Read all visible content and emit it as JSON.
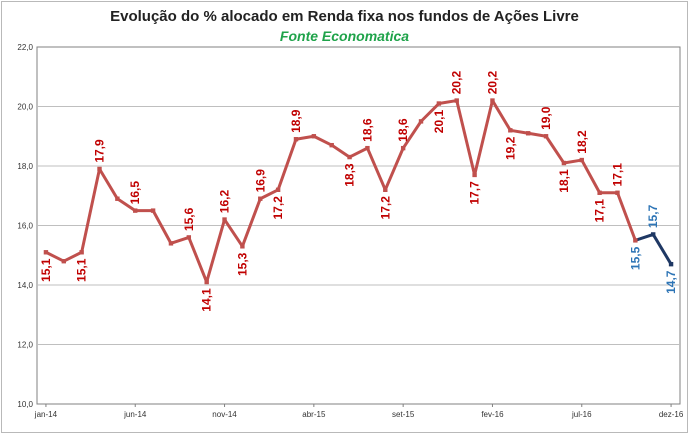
{
  "chart_data": {
    "type": "line",
    "title": "Evolução do %  alocado em Renda fixa nos fundos de Ações Livre",
    "subtitle": "Fonte Economatica",
    "xlabel": "",
    "ylabel": "",
    "ylim": [
      10.0,
      22.0
    ],
    "yticks": [
      "10,0",
      "12,0",
      "14,0",
      "16,0",
      "18,0",
      "20,0",
      "22,0"
    ],
    "xtick_labels": [
      "jan-14",
      "jun-14",
      "nov-14",
      "abr-15",
      "set-15",
      "fev-16",
      "jul-16",
      "dez-16"
    ],
    "grid": true,
    "legend": "none",
    "colors": {
      "main": "#c0504d",
      "recent": "#1f3864",
      "label_main": "#c00000",
      "label_recent": "#2e75b6",
      "plot_bg": "#ffffff",
      "grid": "#bfbfbf",
      "subtitle": "#1fa34a"
    },
    "x": [
      "jan-14",
      "fev-14",
      "mar-14",
      "abr-14",
      "mai-14",
      "jun-14",
      "jul-14",
      "ago-14",
      "set-14",
      "out-14",
      "nov-14",
      "dez-14",
      "jan-15",
      "fev-15",
      "mar-15",
      "abr-15",
      "mai-15",
      "jun-15",
      "jul-15",
      "ago-15",
      "set-15",
      "out-15",
      "nov-15",
      "dez-15",
      "jan-16",
      "fev-16",
      "mar-16",
      "abr-16",
      "mai-16",
      "jun-16",
      "jul-16",
      "ago-16",
      "set-16",
      "out-16",
      "nov-16",
      "dez-16"
    ],
    "series": [
      {
        "values": [
          15.1,
          14.8,
          15.1,
          17.9,
          16.9,
          16.5,
          16.5,
          15.4,
          15.6,
          14.1,
          16.2,
          15.3,
          16.9,
          17.2,
          18.9,
          19.0,
          18.7,
          18.3,
          18.6,
          17.2,
          18.6,
          19.5,
          20.1,
          20.2,
          17.7,
          20.2,
          19.2,
          19.1,
          19.0,
          18.1,
          18.2,
          17.1,
          17.1,
          15.5,
          15.7,
          14.7
        ]
      }
    ],
    "recent_segment_start_index": 33,
    "data_labels": [
      {
        "i": 0,
        "text": "15,1",
        "pos": "below"
      },
      {
        "i": 2,
        "text": "15,1",
        "pos": "below"
      },
      {
        "i": 3,
        "text": "17,9",
        "pos": "above"
      },
      {
        "i": 5,
        "text": "16,5",
        "pos": "above"
      },
      {
        "i": 8,
        "text": "15,6",
        "pos": "above"
      },
      {
        "i": 9,
        "text": "14,1",
        "pos": "below"
      },
      {
        "i": 10,
        "text": "16,2",
        "pos": "above"
      },
      {
        "i": 11,
        "text": "15,3",
        "pos": "below"
      },
      {
        "i": 12,
        "text": "16,9",
        "pos": "above"
      },
      {
        "i": 13,
        "text": "17,2",
        "pos": "below"
      },
      {
        "i": 14,
        "text": "18,9",
        "pos": "above"
      },
      {
        "i": 17,
        "text": "18,3",
        "pos": "below"
      },
      {
        "i": 18,
        "text": "18,6",
        "pos": "above"
      },
      {
        "i": 19,
        "text": "17,2",
        "pos": "below"
      },
      {
        "i": 20,
        "text": "18,6",
        "pos": "above"
      },
      {
        "i": 22,
        "text": "20,1",
        "pos": "below"
      },
      {
        "i": 23,
        "text": "20,2",
        "pos": "above"
      },
      {
        "i": 24,
        "text": "17,7",
        "pos": "below"
      },
      {
        "i": 25,
        "text": "20,2",
        "pos": "above"
      },
      {
        "i": 26,
        "text": "19,2",
        "pos": "below"
      },
      {
        "i": 28,
        "text": "19,0",
        "pos": "above"
      },
      {
        "i": 29,
        "text": "18,1",
        "pos": "below"
      },
      {
        "i": 30,
        "text": "18,2",
        "pos": "above"
      },
      {
        "i": 31,
        "text": "17,1",
        "pos": "below"
      },
      {
        "i": 32,
        "text": "17,1",
        "pos": "above"
      },
      {
        "i": 33,
        "text": "15,5",
        "pos": "below"
      },
      {
        "i": 34,
        "text": "15,7",
        "pos": "above"
      },
      {
        "i": 35,
        "text": "14,7",
        "pos": "below"
      }
    ]
  }
}
